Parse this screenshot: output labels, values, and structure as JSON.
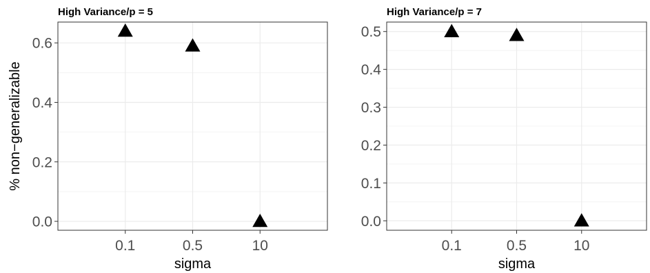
{
  "chart_data": [
    {
      "type": "scatter",
      "title": "High Variance/p = 5",
      "xlabel": "sigma",
      "ylabel": "% non−generalizable",
      "categories": [
        "0.1",
        "0.5",
        "10"
      ],
      "values": [
        0.64,
        0.59,
        0.0
      ],
      "ylim": [
        -0.03,
        0.67
      ],
      "yticks": [
        "0.0",
        "0.2",
        "0.4",
        "0.6"
      ],
      "grid": true,
      "marker": "triangle",
      "marker_color": "#000000"
    },
    {
      "type": "scatter",
      "title": "High Variance/p = 7",
      "xlabel": "sigma",
      "ylabel": "",
      "categories": [
        "0.1",
        "0.5",
        "10"
      ],
      "values": [
        0.5,
        0.49,
        0.0
      ],
      "ylim": [
        -0.025,
        0.525
      ],
      "yticks": [
        "0.0",
        "0.1",
        "0.2",
        "0.3",
        "0.4",
        "0.5"
      ],
      "grid": true,
      "marker": "triangle",
      "marker_color": "#000000"
    }
  ]
}
